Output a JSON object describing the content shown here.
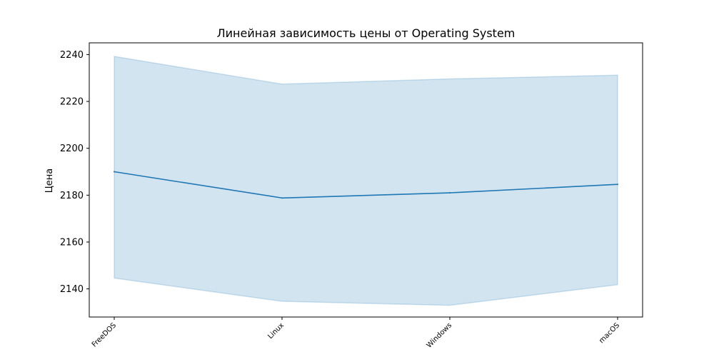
{
  "chart_data": {
    "type": "line",
    "title": "Линейная зависимость цены от Operating System",
    "xlabel": "",
    "ylabel": "Цена",
    "categories": [
      "FreeDOS",
      "Linux",
      "Windows",
      "macOS"
    ],
    "ylim": [
      2128,
      2245
    ],
    "yticks": [
      2140,
      2160,
      2180,
      2200,
      2220,
      2240
    ],
    "grid": false,
    "series": [
      {
        "values": [
          2190.0,
          2178.8,
          2181.0,
          2184.6
        ],
        "ci_lower": [
          2144.6,
          2134.7,
          2133.0,
          2141.8
        ],
        "ci_upper": [
          2239.2,
          2227.4,
          2229.6,
          2231.2
        ],
        "color": "#1f77b4",
        "band_color": "#1f77b4"
      }
    ]
  }
}
